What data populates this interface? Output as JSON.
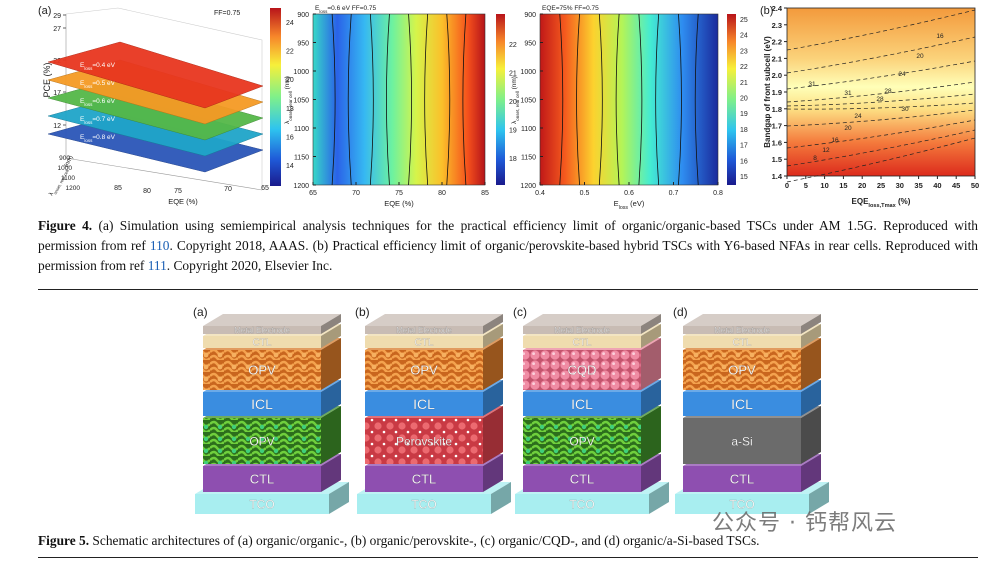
{
  "figure4": {
    "panel_3d": {
      "label": "(a)",
      "note": "FF=0.75",
      "y_label": "PCE (%)",
      "y_ticks": [
        "29",
        "27",
        "22",
        "17",
        "12"
      ],
      "x_label": "EQE (%)",
      "x_ticks": [
        "85",
        "80",
        "75",
        "70",
        "65"
      ],
      "depth_label": [
        "λ",
        "onset, rear cell",
        " (nm)"
      ],
      "depth_ticks": [
        "900",
        "1000",
        "1100",
        "1200"
      ],
      "planes": [
        {
          "label": [
            "E",
            "loss",
            "=0.4 eV"
          ],
          "color": "#e8361f"
        },
        {
          "label": [
            "E",
            "loss",
            "=0.5 eV"
          ],
          "color": "#f59a24"
        },
        {
          "label": [
            "E",
            "loss",
            "=0.6 eV"
          ],
          "color": "#55b848"
        },
        {
          "label": [
            "E",
            "loss",
            "=0.7 eV"
          ],
          "color": "#1fa5c9"
        },
        {
          "label": [
            "E",
            "loss",
            "=0.8 eV"
          ],
          "color": "#2b56b8"
        }
      ],
      "colorbar_ticks": [
        "24",
        "22",
        "20",
        "18",
        "16",
        "14"
      ]
    },
    "heatmap_eqe": {
      "title": [
        "E",
        "loss",
        "=0.6 eV  FF=0.75"
      ],
      "x_label": "EQE (%)",
      "x_ticks": [
        "65",
        "70",
        "75",
        "80",
        "85"
      ],
      "y_label": [
        "λ",
        "onset, rear cell",
        " (nm)"
      ],
      "y_ticks": [
        "900",
        "950",
        "1000",
        "1050",
        "1100",
        "1150",
        "1200"
      ],
      "colorbar_ticks": [
        "22",
        "21",
        "20",
        "19",
        "18"
      ]
    },
    "heatmap_eloss": {
      "title": "EQE=75%  FF=0.75",
      "x_label": [
        "E",
        "loss",
        " (eV)"
      ],
      "x_ticks": [
        "0.4",
        "0.5",
        "0.6",
        "0.7",
        "0.8"
      ],
      "y_label": [
        "λ",
        "onset, rear cell",
        " (nm)"
      ],
      "y_ticks": [
        "900",
        "950",
        "1000",
        "1050",
        "1100",
        "1150",
        "1200"
      ],
      "colorbar_ticks": [
        "25",
        "24",
        "23",
        "22",
        "21",
        "20",
        "19",
        "18",
        "17",
        "16",
        "15"
      ]
    },
    "panel_b": {
      "label": "(b)",
      "y_label": "Bandgap of front subcell (eV)",
      "y_ticks": [
        "2.4",
        "2.3",
        "2.2",
        "2.1",
        "2.0",
        "1.9",
        "1.8",
        "1.7",
        "1.6",
        "1.5",
        "1.4"
      ],
      "x_label": [
        "EQE",
        "loss,Tmax",
        " (%)"
      ],
      "x_ticks": [
        "0",
        "5",
        "10",
        "15",
        "20",
        "25",
        "30",
        "35",
        "40",
        "45",
        "50"
      ],
      "contour_labels": [
        "16",
        "20",
        "24",
        "28",
        "30",
        "31",
        "31",
        "28",
        "24",
        "20",
        "16",
        "12",
        "8"
      ]
    },
    "caption": {
      "label": "Figure 4.",
      "text_1": " (a) Simulation using semiempirical analysis techniques for the practical efficiency limit of organic/organic-based TSCs under AM 1.5G. Reproduced with permission from ref ",
      "ref_1": "110",
      "text_2": ". Copyright 2018, AAAS. (b) Practical efficiency limit of organic/perovskite-based hybrid TSCs with Y6-based NFAs in rear cells. Reproduced with permission from ref ",
      "ref_2": "111",
      "text_3": ". Copyright 2020, Elsevier Inc."
    }
  },
  "figure5": {
    "panels": [
      {
        "label": "(a)",
        "layers": [
          {
            "text": "Metal Electrode",
            "color": "#c8bcb4"
          },
          {
            "text": "CTL",
            "color": "#efdcae"
          },
          {
            "text": "OPV",
            "color": "#d77a2a"
          },
          {
            "text": "ICL",
            "color": "#3a8de0"
          },
          {
            "text": "OPV",
            "color": "#3f8f2a"
          },
          {
            "text": "CTL",
            "color": "#8e4fb0"
          },
          {
            "text": "TCO",
            "color": "#a8eef0"
          }
        ]
      },
      {
        "label": "(b)",
        "layers": [
          {
            "text": "Metal Electrode",
            "color": "#c8bcb4"
          },
          {
            "text": "CTL",
            "color": "#efdcae"
          },
          {
            "text": "OPV",
            "color": "#d77a2a"
          },
          {
            "text": "ICL",
            "color": "#3a8de0"
          },
          {
            "text": "Perovskite",
            "color": "#d8404a"
          },
          {
            "text": "CTL",
            "color": "#8e4fb0"
          },
          {
            "text": "TCO",
            "color": "#a8eef0"
          }
        ]
      },
      {
        "label": "(c)",
        "layers": [
          {
            "text": "Metal Electrode",
            "color": "#c8bcb4"
          },
          {
            "text": "CTL",
            "color": "#efdcae"
          },
          {
            "text": "CQD",
            "color": "#e9859a"
          },
          {
            "text": "ICL",
            "color": "#3a8de0"
          },
          {
            "text": "OPV",
            "color": "#3f8f2a"
          },
          {
            "text": "CTL",
            "color": "#8e4fb0"
          },
          {
            "text": "TCO",
            "color": "#a8eef0"
          }
        ]
      },
      {
        "label": "(d)",
        "layers": [
          {
            "text": "Metal Electrode",
            "color": "#c8bcb4"
          },
          {
            "text": "CTL",
            "color": "#efdcae"
          },
          {
            "text": "OPV",
            "color": "#d77a2a"
          },
          {
            "text": "ICL",
            "color": "#3a8de0"
          },
          {
            "text": "a-Si",
            "color": "#6b6b6b"
          },
          {
            "text": "CTL",
            "color": "#8e4fb0"
          },
          {
            "text": "TCO",
            "color": "#a8eef0"
          }
        ]
      }
    ],
    "caption": {
      "label": "Figure 5.",
      "text": " Schematic architectures of (a) organic/organic-, (b) organic/perovskite-, (c) organic/CQD-, and (d) organic/a-Si-based TSCs."
    }
  },
  "watermark": "公众号 · 钙帮风云"
}
